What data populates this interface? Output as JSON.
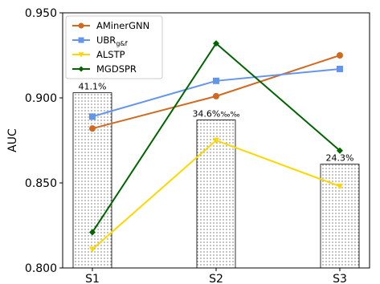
{
  "chart_data": {
    "type": "line",
    "title": "",
    "xlabel": "",
    "ylabel": "AUC",
    "categories": [
      "S1",
      "S2",
      "S3"
    ],
    "ylim": [
      0.8,
      0.95
    ],
    "yticks": [
      "0.800",
      "0.850",
      "0.900",
      "0.950"
    ],
    "ytick_values": [
      0.8,
      0.85,
      0.9,
      0.95
    ],
    "grid": false,
    "legend_placement": "top-left",
    "bars": {
      "values": [
        0.903,
        0.887,
        0.861
      ],
      "labels": [
        "41.1%",
        "34.6%",
        "24.3%"
      ],
      "label_suffixes": [
        "",
        "‰‰",
        ""
      ],
      "pattern": "dotted"
    },
    "series": [
      {
        "name": "AMinerGNN",
        "name_sub": "",
        "color": "#d2691e",
        "marker": "circle",
        "values": [
          0.882,
          0.901,
          0.925
        ]
      },
      {
        "name": "UBR",
        "name_sub": "g&f",
        "color": "#6495ed",
        "marker": "square",
        "values": [
          0.889,
          0.91,
          0.917
        ]
      },
      {
        "name": "ALSTP",
        "name_sub": "",
        "color": "#ffd700",
        "marker": "triangle-down",
        "values": [
          0.811,
          0.875,
          0.848
        ]
      },
      {
        "name": "MGDSPR",
        "name_sub": "",
        "color": "#006400",
        "marker": "diamond",
        "values": [
          0.821,
          0.932,
          0.869
        ]
      }
    ]
  }
}
